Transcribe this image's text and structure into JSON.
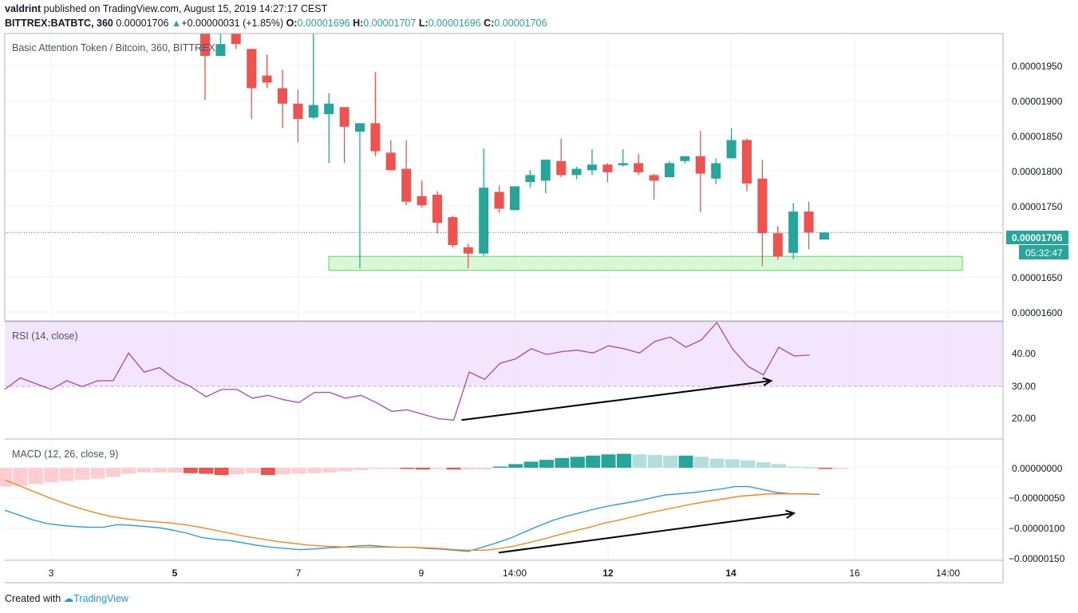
{
  "header": {
    "author": "valdrint",
    "published_text": "published on TradingView.com, August 15, 2019 14:27:17 CEST",
    "symbol": "BITTREX:BATBTC, 360",
    "last": "0.00001706",
    "change": "+0.00000031 (+1.85%)",
    "open_label": "O:",
    "open": "0.00001696",
    "high_label": "H:",
    "high": "0.00001707",
    "low_label": "L:",
    "low": "0.00001696",
    "close_label": "C:",
    "close": "0.00001706"
  },
  "main": {
    "title": "Basic Attention Token / Bitcoin, 360, BITTREX",
    "price_label": "0.00001706",
    "countdown": "05:32:47",
    "ticks": [
      "0.00001950",
      "0.00001900",
      "0.00001850",
      "0.00001800",
      "0.00001750",
      "0.00001650",
      "0.00001600"
    ]
  },
  "rsi": {
    "title": "RSI (14, close)",
    "ticks": [
      "40.00",
      "30.00",
      "20.00"
    ]
  },
  "macd": {
    "title": "MACD (12, 26, close, 9)",
    "ticks": [
      "0.00000000",
      "−0.00000050",
      "−0.00000100",
      "−0.00000150"
    ]
  },
  "xaxis": {
    "labels": [
      "3",
      "5",
      "7",
      "9",
      "14:00",
      "12",
      "14",
      "16",
      "14:00"
    ],
    "bold": [
      false,
      true,
      false,
      false,
      false,
      true,
      true,
      false,
      false
    ]
  },
  "footer": {
    "created": "Created with",
    "brand": "TradingView"
  },
  "colors": {
    "up": "#26a69a",
    "down": "#ef5350",
    "rsi": "#a24bbd",
    "macd": "#2196f3",
    "signal": "#ff7f0e",
    "zone": "#90ee90"
  },
  "chart_data": [
    {
      "type": "candlestick",
      "title": "Basic Attention Token / Bitcoin, 360, BITTREX",
      "ylim": [
        1.58e-05,
        1.99e-05
      ],
      "last_price": 1.706e-05,
      "support_zone": [
        1.652e-05,
        1.672e-05
      ],
      "candles": [
        {
          "o": 1.99e-05,
          "h": 1.99e-05,
          "l": 1.895e-05,
          "c": 1.958e-05
        },
        {
          "o": 1.958e-05,
          "h": 1.99e-05,
          "l": 1.958e-05,
          "c": 1.975e-05
        },
        {
          "o": 1.99e-05,
          "h": 1.99e-05,
          "l": 1.968e-05,
          "c": 1.975e-05
        },
        {
          "o": 1.968e-05,
          "h": 1.968e-05,
          "l": 1.868e-05,
          "c": 1.912e-05
        },
        {
          "o": 1.93e-05,
          "h": 1.96e-05,
          "l": 1.912e-05,
          "c": 1.92e-05
        },
        {
          "o": 1.912e-05,
          "h": 1.938e-05,
          "l": 1.855e-05,
          "c": 1.89e-05
        },
        {
          "o": 1.89e-05,
          "h": 1.91e-05,
          "l": 1.835e-05,
          "c": 1.868e-05
        },
        {
          "o": 1.87e-05,
          "h": 1.99e-05,
          "l": 1.868e-05,
          "c": 1.888e-05
        },
        {
          "o": 1.875e-05,
          "h": 1.905e-05,
          "l": 1.805e-05,
          "c": 1.89e-05
        },
        {
          "o": 1.885e-05,
          "h": 1.885e-05,
          "l": 1.805e-05,
          "c": 1.857e-05
        },
        {
          "o": 1.85e-05,
          "h": 1.862e-05,
          "l": 1.655e-05,
          "c": 1.862e-05
        },
        {
          "o": 1.862e-05,
          "h": 1.935e-05,
          "l": 1.815e-05,
          "c": 1.822e-05
        },
        {
          "o": 1.82e-05,
          "h": 1.838e-05,
          "l": 1.795e-05,
          "c": 1.795e-05
        },
        {
          "o": 1.797e-05,
          "h": 1.838e-05,
          "l": 1.745e-05,
          "c": 1.75e-05
        },
        {
          "o": 1.758e-05,
          "h": 1.78e-05,
          "l": 1.742e-05,
          "c": 1.745e-05
        },
        {
          "o": 1.76e-05,
          "h": 1.765e-05,
          "l": 1.705e-05,
          "c": 1.72e-05
        },
        {
          "o": 1.728e-05,
          "h": 1.73e-05,
          "l": 1.685e-05,
          "c": 1.688e-05
        },
        {
          "o": 1.685e-05,
          "h": 1.69e-05,
          "l": 1.655e-05,
          "c": 1.676e-05
        },
        {
          "o": 1.676e-05,
          "h": 1.826e-05,
          "l": 1.673e-05,
          "c": 1.77e-05
        },
        {
          "o": 1.764e-05,
          "h": 1.773e-05,
          "l": 1.734e-05,
          "c": 1.74e-05
        },
        {
          "o": 1.738e-05,
          "h": 1.772e-05,
          "l": 1.738e-05,
          "c": 1.772e-05
        },
        {
          "o": 1.778e-05,
          "h": 1.795e-05,
          "l": 1.77e-05,
          "c": 1.788e-05
        },
        {
          "o": 1.78e-05,
          "h": 1.81e-05,
          "l": 1.762e-05,
          "c": 1.81e-05
        },
        {
          "o": 1.808e-05,
          "h": 1.84e-05,
          "l": 1.785e-05,
          "c": 1.788e-05
        },
        {
          "o": 1.788e-05,
          "h": 1.8e-05,
          "l": 1.782e-05,
          "c": 1.797e-05
        },
        {
          "o": 1.795e-05,
          "h": 1.825e-05,
          "l": 1.788e-05,
          "c": 1.803e-05
        },
        {
          "o": 1.803e-05,
          "h": 1.805e-05,
          "l": 1.778e-05,
          "c": 1.792e-05
        },
        {
          "o": 1.802e-05,
          "h": 1.825e-05,
          "l": 1.8e-05,
          "c": 1.805e-05
        },
        {
          "o": 1.805e-05,
          "h": 1.818e-05,
          "l": 1.788e-05,
          "c": 1.792e-05
        },
        {
          "o": 1.788e-05,
          "h": 1.79e-05,
          "l": 1.753e-05,
          "c": 1.78e-05
        },
        {
          "o": 1.785e-05,
          "h": 1.808e-05,
          "l": 1.785e-05,
          "c": 1.805e-05
        },
        {
          "o": 1.808e-05,
          "h": 1.813e-05,
          "l": 1.805e-05,
          "c": 1.815e-05
        },
        {
          "o": 1.815e-05,
          "h": 1.851e-05,
          "l": 1.735e-05,
          "c": 1.79e-05
        },
        {
          "o": 1.783e-05,
          "h": 1.812e-05,
          "l": 1.775e-05,
          "c": 1.805e-05
        },
        {
          "o": 1.812e-05,
          "h": 1.855e-05,
          "l": 1.812e-05,
          "c": 1.838e-05
        },
        {
          "o": 1.838e-05,
          "h": 1.84e-05,
          "l": 1.765e-05,
          "c": 1.776e-05
        },
        {
          "o": 1.783e-05,
          "h": 1.81e-05,
          "l": 1.658e-05,
          "c": 1.705e-05
        },
        {
          "o": 1.705e-05,
          "h": 1.715e-05,
          "l": 1.667e-05,
          "c": 1.672e-05
        },
        {
          "o": 1.677e-05,
          "h": 1.748e-05,
          "l": 1.668e-05,
          "c": 1.736e-05
        },
        {
          "o": 1.736e-05,
          "h": 1.75e-05,
          "l": 1.682e-05,
          "c": 1.706e-05
        },
        {
          "o": 1.696e-05,
          "h": 1.707e-05,
          "l": 1.696e-05,
          "c": 1.706e-05
        }
      ]
    },
    {
      "type": "line",
      "title": "RSI (14, close)",
      "ylim": [
        12,
        50
      ],
      "band": [
        30,
        50
      ],
      "values": [
        27,
        31,
        29,
        27,
        30,
        28,
        30,
        30,
        39.5,
        33,
        34.5,
        30.5,
        28,
        24.5,
        27,
        27,
        24,
        25,
        23.5,
        22.5,
        26,
        26,
        24,
        25,
        22.5,
        19.5,
        20,
        18.5,
        17,
        16.5,
        33,
        30.5,
        36,
        37.5,
        41,
        39,
        40,
        40.5,
        39.5,
        42,
        41,
        39.5,
        43.5,
        45,
        41.5,
        44,
        50,
        41,
        35,
        32,
        41.5,
        38.5,
        38.8
      ],
      "annotations": [
        {
          "type": "arrow",
          "from": {
            "x": 29.5,
            "y": 16.5
          },
          "to": {
            "x": 49.5,
            "y": 30
          }
        }
      ]
    },
    {
      "type": "line",
      "title": "MACD (12, 26, close, 9)",
      "ylim": [
        -1.55e-06,
        2.5e-07
      ],
      "series": [
        {
          "values": [
            -7e-07,
            -7.8e-07,
            -8.6e-07,
            -9.2e-07,
            -9.5e-07,
            -9.7e-07,
            -9.8e-07,
            -9.8e-07,
            -9.4e-07,
            -9.5e-07,
            -9.7e-07,
            -9.9e-07,
            -1.03e-06,
            -1.08e-06,
            -1.15e-06,
            -1.18e-06,
            -1.2e-06,
            -1.24e-06,
            -1.28e-06,
            -1.31e-06,
            -1.33e-06,
            -1.35e-06,
            -1.34e-06,
            -1.32e-06,
            -1.31e-06,
            -1.29e-06,
            -1.28e-06,
            -1.3e-06,
            -1.31e-06,
            -1.31e-06,
            -1.33e-06,
            -1.34e-06,
            -1.36e-06,
            -1.38e-06,
            -1.31e-06,
            -1.24e-06,
            -1.16e-06,
            -1.06e-06,
            -9.6e-07,
            -8.7e-07,
            -8e-07,
            -7.4e-07,
            -6.8e-07,
            -6.3e-07,
            -5.9e-07,
            -5.5e-07,
            -5e-07,
            -4.5e-07,
            -4.3e-07,
            -4.1e-07,
            -3.8e-07,
            -3.5e-07,
            -3.1e-07,
            -3.1e-07,
            -3.6e-07,
            -4.1e-07,
            -4.3e-07,
            -4.3e-07,
            -4.4e-07
          ]
        },
        {
          "values": [
            -2e-07,
            -3e-07,
            -4e-07,
            -5e-07,
            -5.9e-07,
            -6.7e-07,
            -7.4e-07,
            -8e-07,
            -8.4e-07,
            -8.7e-07,
            -8.9e-07,
            -9.1e-07,
            -9.4e-07,
            -9.8e-07,
            -1.03e-06,
            -1.08e-06,
            -1.13e-06,
            -1.17e-06,
            -1.21e-06,
            -1.24e-06,
            -1.27e-06,
            -1.29e-06,
            -1.3e-06,
            -1.31e-06,
            -1.31e-06,
            -1.31e-06,
            -1.31e-06,
            -1.31e-06,
            -1.32e-06,
            -1.33e-06,
            -1.35e-06,
            -1.36e-06,
            -1.36e-06,
            -1.33e-06,
            -1.29e-06,
            -1.23e-06,
            -1.17e-06,
            -1.1e-06,
            -1.04e-06,
            -9.8e-07,
            -9.1e-07,
            -8.6e-07,
            -8e-07,
            -7.4e-07,
            -6.9e-07,
            -6.4e-07,
            -5.9e-07,
            -5.5e-07,
            -5.1e-07,
            -4.7e-07,
            -4.5e-07,
            -4.3e-07,
            -4.3e-07,
            -4.3e-07,
            -4.4e-07
          ]
        }
      ],
      "histogram": [
        -3.1e-07,
        -3e-07,
        -2.7e-07,
        -2.4e-07,
        -2.2e-07,
        -2e-07,
        -1.8e-07,
        -1.5e-07,
        -1e-07,
        -8e-08,
        -8e-08,
        -8e-08,
        -9e-08,
        -1e-07,
        -1.2e-07,
        -1.1e-07,
        -9e-08,
        -1.2e-07,
        -1.1e-07,
        -1e-07,
        -9e-08,
        -8e-08,
        -6e-08,
        -4e-08,
        -2e-08,
        -1e-08,
        -2e-08,
        -3e-08,
        -2e-08,
        -3e-08,
        -3e-08,
        -3e-08,
        2e-08,
        6e-08,
        1e-07,
        1.3e-07,
        1.6e-07,
        1.8e-07,
        2e-07,
        2.2e-07,
        2.3e-07,
        2.2e-07,
        2.1e-07,
        2e-07,
        2e-07,
        1.8e-07,
        1.5e-07,
        1.4e-07,
        1.2e-07,
        9e-08,
        6e-08,
        2e-08,
        1e-08,
        -1e-08,
        -1e-08
      ],
      "annotations": [
        {
          "type": "arrow",
          "from": {
            "x": 32,
            "y": -1.4e-06
          },
          "to": {
            "x": 51,
            "y": -7.5e-07
          }
        }
      ]
    }
  ]
}
